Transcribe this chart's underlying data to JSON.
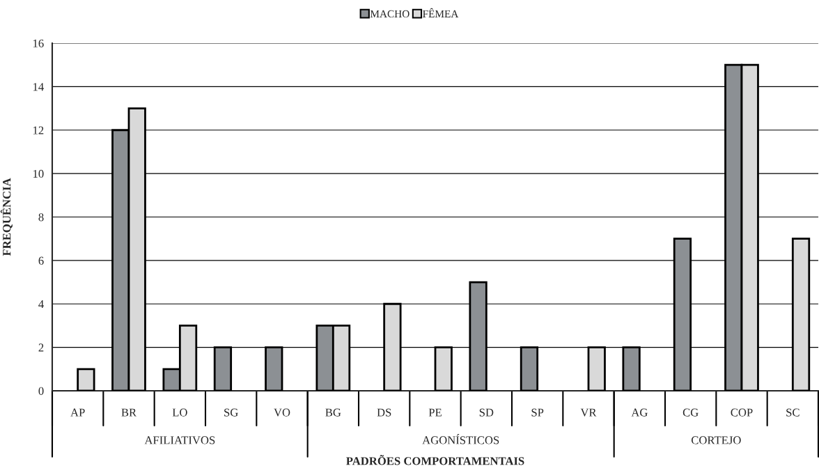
{
  "chart_data": {
    "type": "bar",
    "xlabel": "PADRÕES COMPORTAMENTAIS",
    "ylabel": "FREQUÊNCIA",
    "categories": [
      "AP",
      "BR",
      "LO",
      "SG",
      "VO",
      "BG",
      "DS",
      "PE",
      "SD",
      "SP",
      "VR",
      "AG",
      "CG",
      "COP",
      "SC"
    ],
    "series": [
      {
        "name": "MACHO",
        "color": "#8c9094",
        "values": [
          null,
          12,
          1,
          2,
          2,
          3,
          null,
          null,
          5,
          2,
          null,
          2,
          7,
          15,
          null
        ]
      },
      {
        "name": "FÊMEA",
        "color": "#d9d9d9",
        "values": [
          1,
          13,
          3,
          null,
          null,
          3,
          4,
          2,
          null,
          null,
          2,
          null,
          null,
          15,
          7
        ]
      }
    ],
    "annotations": [
      "AFILIATIVOS",
      "AGONÍSTICOS",
      "CORTEJO"
    ],
    "ylim": [
      0,
      16
    ],
    "yticks": [
      0,
      2,
      4,
      6,
      8,
      10,
      12,
      14,
      16
    ],
    "grid": "y",
    "legend": "top"
  }
}
